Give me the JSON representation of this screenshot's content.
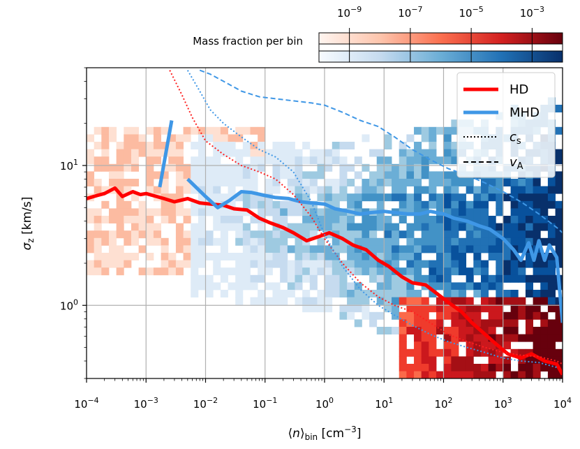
{
  "chart_data": {
    "type": "heatmap",
    "title": "",
    "xlabel": "⟨n⟩bin [cm⁻³]",
    "ylabel": "σz [km/s]",
    "xscale": "log",
    "yscale": "log",
    "xlim": [
      0.0001,
      10000
    ],
    "ylim": [
      0.3,
      50
    ],
    "grid": true,
    "x_ticks": [
      {
        "base": "10",
        "exp": "−4",
        "value": 0.0001
      },
      {
        "base": "10",
        "exp": "−3",
        "value": 0.001
      },
      {
        "base": "10",
        "exp": "−2",
        "value": 0.01
      },
      {
        "base": "10",
        "exp": "−1",
        "value": 0.1
      },
      {
        "base": "10",
        "exp": "0",
        "value": 1
      },
      {
        "base": "10",
        "exp": "1",
        "value": 10
      },
      {
        "base": "10",
        "exp": "2",
        "value": 100
      },
      {
        "base": "10",
        "exp": "3",
        "value": 1000
      },
      {
        "base": "10",
        "exp": "4",
        "value": 10000
      }
    ],
    "y_ticks": [
      {
        "base": "10",
        "exp": "0",
        "value": 1
      },
      {
        "base": "10",
        "exp": "1",
        "value": 10
      }
    ],
    "colorbar": {
      "label": "Mass fraction per bin",
      "scale": "log",
      "range": [
        1e-10,
        0.01
      ],
      "ticks": [
        {
          "base": "10",
          "exp": "−9",
          "value": 1e-09
        },
        {
          "base": "10",
          "exp": "−7",
          "value": 1e-07
        },
        {
          "base": "10",
          "exp": "−5",
          "value": 1e-05
        },
        {
          "base": "10",
          "exp": "−3",
          "value": 0.001
        }
      ],
      "colormaps": [
        "Reds (HD)",
        "Blues (MHD)"
      ]
    },
    "legend": {
      "placement": "top-right",
      "entries": [
        {
          "label": "HD",
          "style": "solid",
          "color": "#ff0000"
        },
        {
          "label": "MHD",
          "style": "solid",
          "color": "#3f97e6"
        },
        {
          "label_main": "c",
          "label_sub": "s",
          "style": "dotted",
          "color": "#000000"
        },
        {
          "label_main": "v",
          "label_sub": "A",
          "style": "dashed",
          "color": "#000000"
        }
      ]
    },
    "series": [
      {
        "name": "HD",
        "kind": "sigma_z",
        "color": "#ff0000",
        "style": "solid",
        "x": [
          0.0001,
          0.00015,
          0.0002,
          0.0003,
          0.0004,
          0.0006,
          0.0008,
          0.001,
          0.0015,
          0.002,
          0.003,
          0.005,
          0.008,
          0.012,
          0.02,
          0.03,
          0.05,
          0.08,
          0.12,
          0.2,
          0.3,
          0.5,
          0.8,
          1.2,
          2,
          3,
          5,
          8,
          12,
          20,
          30,
          50,
          80,
          120,
          200,
          300,
          500,
          800,
          1200,
          2000,
          3000,
          5000,
          8000,
          10000
        ],
        "y": [
          5.8,
          6.1,
          6.3,
          6.9,
          6.0,
          6.5,
          6.2,
          6.3,
          6.0,
          5.8,
          5.5,
          5.8,
          5.4,
          5.3,
          5.2,
          4.9,
          4.8,
          4.2,
          3.9,
          3.6,
          3.3,
          2.9,
          3.1,
          3.3,
          3.0,
          2.7,
          2.5,
          2.1,
          1.9,
          1.6,
          1.45,
          1.4,
          1.2,
          1.05,
          0.9,
          0.75,
          0.62,
          0.52,
          0.45,
          0.42,
          0.45,
          0.4,
          0.38,
          0.32
        ]
      },
      {
        "name": "MHD",
        "kind": "sigma_z",
        "color": "#3f97e6",
        "style": "solid",
        "segments": [
          {
            "x": [
              0.0017,
              0.0027
            ],
            "y": [
              7.0,
              21.0
            ]
          },
          {
            "x": [
              0.005,
              0.01,
              0.016,
              0.025,
              0.04,
              0.06,
              0.1,
              0.15,
              0.25,
              0.4,
              0.6,
              1.0,
              1.5,
              2.5,
              4,
              6,
              10,
              15,
              25,
              40,
              60,
              100,
              150,
              250,
              400,
              600,
              1000,
              1500,
              2000,
              2700,
              3300,
              4000,
              5000,
              6000,
              8000,
              10000
            ],
            "y": [
              8.0,
              6.0,
              5.0,
              5.6,
              6.5,
              6.4,
              6.1,
              5.9,
              5.8,
              5.5,
              5.4,
              5.3,
              4.9,
              4.7,
              4.5,
              4.6,
              4.7,
              4.6,
              4.5,
              4.5,
              4.7,
              4.5,
              4.2,
              4.0,
              3.7,
              3.5,
              3.0,
              2.5,
              2.1,
              2.8,
              2.1,
              2.9,
              2.1,
              2.7,
              2.2,
              0.75
            ]
          }
        ]
      },
      {
        "name": "HD",
        "kind": "c_s",
        "color": "#ff2020",
        "style": "dotted",
        "x": [
          0.0025,
          0.004,
          0.006,
          0.01,
          0.02,
          0.04,
          0.08,
          0.15,
          0.3,
          0.6,
          1,
          2,
          4,
          8,
          15,
          30,
          60,
          120,
          250,
          500,
          1000,
          2000,
          4000,
          8000,
          10000
        ],
        "y": [
          48,
          32,
          22,
          15,
          12,
          10,
          9.0,
          8.0,
          6.2,
          4.3,
          3.0,
          2.0,
          1.45,
          1.15,
          1.0,
          0.9,
          0.75,
          0.62,
          0.55,
          0.5,
          0.46,
          0.44,
          0.43,
          0.4,
          0.38
        ]
      },
      {
        "name": "MHD",
        "kind": "c_s",
        "color": "#3f97e6",
        "style": "dotted",
        "x": [
          0.005,
          0.008,
          0.012,
          0.02,
          0.04,
          0.08,
          0.15,
          0.3,
          0.6,
          1,
          2,
          4,
          8,
          15,
          30,
          60,
          120,
          250,
          500,
          1000,
          2000,
          4000,
          8000
        ],
        "y": [
          48,
          34,
          25,
          20,
          16,
          13,
          11.5,
          9.0,
          5.5,
          3.2,
          1.9,
          1.3,
          1.0,
          0.85,
          0.72,
          0.62,
          0.55,
          0.5,
          0.46,
          0.42,
          0.4,
          0.39,
          0.36
        ]
      },
      {
        "name": "MHD",
        "kind": "v_A",
        "color": "#3f97e6",
        "style": "dashed",
        "x": [
          0.008,
          0.012,
          0.02,
          0.04,
          0.08,
          0.15,
          0.3,
          0.6,
          1,
          2,
          4,
          8,
          15,
          30,
          60,
          120,
          250,
          500,
          1000,
          2000,
          4000,
          8000,
          10000
        ],
        "y": [
          48,
          45,
          40,
          34,
          31,
          30,
          29,
          28,
          27,
          24,
          21,
          19,
          16,
          13,
          11,
          9.5,
          8.5,
          7.5,
          6.5,
          5.5,
          4.5,
          3.6,
          3.3
        ]
      }
    ]
  }
}
